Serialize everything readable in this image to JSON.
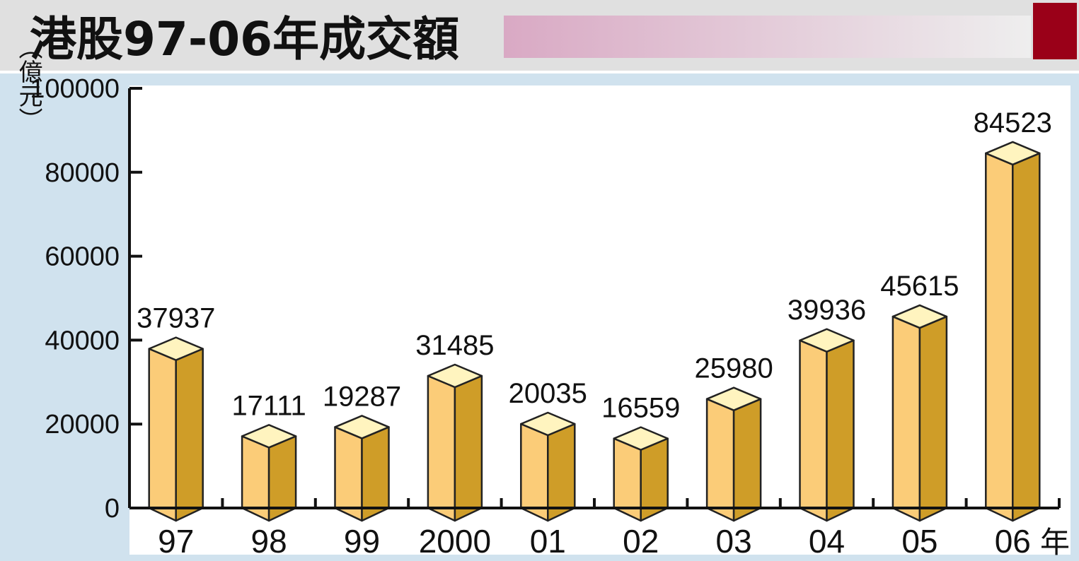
{
  "title": "港股97-06年成交額",
  "colors": {
    "header_bg": "#e0e0e0",
    "banner_left": "#d9a9c4",
    "banner_right": "#eeeeee",
    "accent_block": "#9a0018",
    "plot_bg": "#d0e2ee",
    "bar_front": "#fbcc78",
    "bar_side": "#cf9d28",
    "bar_top": "#fff4bf",
    "axis": "#111111"
  },
  "chart_data": {
    "type": "bar",
    "title": "港股97-06年成交額",
    "ylabel": "（億元）",
    "xlabel_suffix": "年",
    "categories": [
      "97",
      "98",
      "99",
      "2000",
      "01",
      "02",
      "03",
      "04",
      "05",
      "06"
    ],
    "values": [
      37937,
      17111,
      19287,
      31485,
      20035,
      16559,
      25980,
      39936,
      45615,
      84523
    ],
    "value_labels": [
      "37937",
      "17111",
      "19287",
      "31485",
      "20035",
      "16559",
      "25980",
      "39936",
      "45615",
      "84523"
    ],
    "ylim": [
      0,
      100000
    ],
    "yticks": [
      "0",
      "20000",
      "40000",
      "60000",
      "80000",
      "100000"
    ],
    "grid": false,
    "legend": "none",
    "style": "3d-columns"
  }
}
